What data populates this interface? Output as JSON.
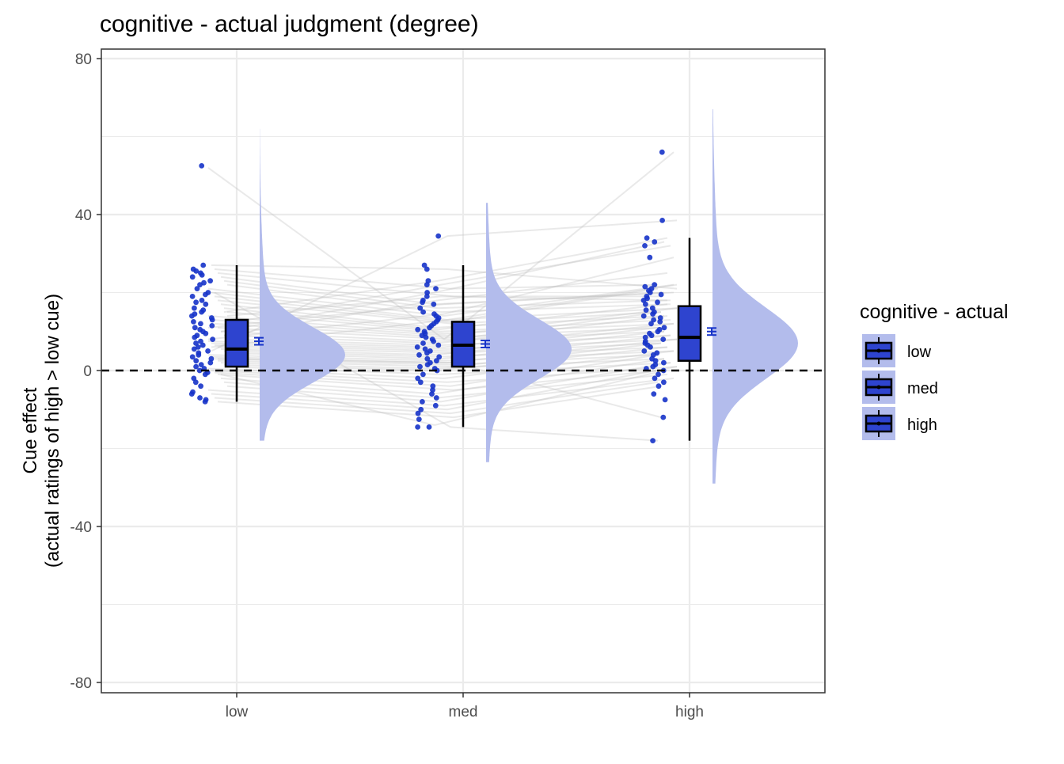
{
  "chart_data": {
    "type": "raincloud",
    "title": "cognitive  - actual judgment (degree)",
    "xlabel": "",
    "ylabel_lines": [
      "Cue effect",
      "(actual ratings of high > low cue)"
    ],
    "categories": [
      "low",
      "med",
      "high"
    ],
    "ylim": [
      -82,
      82
    ],
    "yticks": [
      -80,
      -40,
      0,
      40,
      80
    ],
    "ytick_labels": [
      "-80",
      "-40",
      "0",
      "40",
      "80"
    ],
    "grid": true,
    "reference_line": {
      "y": 0,
      "style": "dashed"
    },
    "colors": {
      "points": "#1633c9",
      "box_fill": "#2e44cf",
      "density_fill": "#b3bcec",
      "lines": "#bfbfbf",
      "grid": "#ebebeb"
    },
    "boxes": [
      {
        "category": "low",
        "q1": 1,
        "median": 5.5,
        "q3": 13,
        "whisker_low": -8,
        "whisker_high": 27,
        "mean": 7.5,
        "se": 0.9
      },
      {
        "category": "med",
        "q1": 1,
        "median": 6.5,
        "q3": 12.5,
        "whisker_low": -14.5,
        "whisker_high": 27,
        "mean": 6.8,
        "se": 0.9
      },
      {
        "category": "high",
        "q1": 2.5,
        "median": 8.5,
        "q3": 16.5,
        "whisker_low": -18,
        "whisker_high": 34,
        "mean": 10,
        "se": 0.9
      }
    ],
    "densities": [
      {
        "category": "low",
        "range": [
          -18,
          62
        ],
        "peak": 4,
        "spread": 7
      },
      {
        "category": "med",
        "range": [
          -23.5,
          43
        ],
        "peak": 5.5,
        "spread": 7.5
      },
      {
        "category": "high",
        "range": [
          -29,
          67
        ],
        "peak": 7,
        "spread": 9
      }
    ],
    "points": {
      "low": [
        52.5,
        27,
        26,
        25.5,
        25,
        24.5,
        24,
        23,
        22.5,
        22,
        21,
        20,
        19.5,
        19,
        18,
        17.5,
        17,
        16,
        15.5,
        15,
        14.5,
        14,
        13.5,
        13,
        12.5,
        12,
        11.5,
        11,
        10.5,
        10,
        9.5,
        9,
        8.5,
        8,
        7.5,
        7,
        6.5,
        6,
        5.5,
        5,
        4.5,
        4,
        3.5,
        3,
        2.5,
        2,
        1.5,
        1,
        0.5,
        0,
        -0.5,
        -1,
        -2,
        -3,
        -4,
        -5.5,
        -6,
        -7,
        -7.5,
        -8
      ],
      "med": [
        34.5,
        27,
        26,
        23,
        22,
        21,
        20,
        19,
        18,
        17.5,
        17,
        16,
        15,
        14.5,
        14,
        13.5,
        13,
        12.5,
        12,
        11.5,
        11,
        10.5,
        10,
        9.5,
        9,
        8.5,
        8,
        7.5,
        7,
        6.5,
        6,
        5.5,
        5,
        4.5,
        4,
        3.5,
        3,
        2.5,
        2,
        1.5,
        1,
        0.5,
        0,
        -1,
        -2,
        -3,
        -4,
        -5,
        -6,
        -7,
        -8,
        -9,
        -10,
        -11,
        -12.5,
        -14.5,
        -14.5
      ],
      "high": [
        56,
        38.5,
        34,
        33,
        32,
        29,
        22,
        21.5,
        21,
        20.5,
        20,
        19.5,
        19,
        18.5,
        18,
        17.5,
        17,
        16,
        15.5,
        15,
        14.5,
        14,
        13.5,
        13,
        12.5,
        12,
        11,
        10.5,
        10,
        9.5,
        9,
        8.5,
        8,
        7.5,
        7,
        6.5,
        6,
        5,
        4.5,
        4,
        3,
        2.5,
        2,
        1.5,
        1,
        0.5,
        0,
        -1,
        -2,
        -3,
        -4,
        -6,
        -7.5,
        -12,
        -18
      ]
    },
    "subject_lines": [
      [
        52,
        8,
        56
      ],
      [
        27,
        26,
        21
      ],
      [
        26,
        21,
        22
      ],
      [
        25,
        19,
        19
      ],
      [
        24,
        17,
        20
      ],
      [
        23,
        16,
        18
      ],
      [
        22,
        15,
        17
      ],
      [
        21,
        14,
        22
      ],
      [
        20,
        13,
        16
      ],
      [
        19,
        12.5,
        21
      ],
      [
        18,
        12,
        15
      ],
      [
        17,
        11,
        14
      ],
      [
        16,
        10.5,
        17
      ],
      [
        15,
        10,
        13
      ],
      [
        14,
        9.5,
        12
      ],
      [
        13,
        9,
        16
      ],
      [
        12,
        8.5,
        11
      ],
      [
        11,
        8,
        15
      ],
      [
        10,
        7.5,
        10
      ],
      [
        9,
        7,
        14
      ],
      [
        8,
        6.5,
        9
      ],
      [
        7.5,
        6,
        12
      ],
      [
        7,
        5.5,
        8
      ],
      [
        6.5,
        5,
        11
      ],
      [
        6,
        4.5,
        7
      ],
      [
        5.5,
        4,
        10
      ],
      [
        5,
        3.5,
        6
      ],
      [
        4.5,
        3,
        9
      ],
      [
        4,
        2.5,
        5
      ],
      [
        3.5,
        2,
        8
      ],
      [
        3,
        1.5,
        4
      ],
      [
        2.5,
        1,
        7
      ],
      [
        2,
        0.5,
        3
      ],
      [
        1.5,
        0,
        6
      ],
      [
        1,
        -1,
        2
      ],
      [
        0.5,
        -2,
        5
      ],
      [
        0,
        -3,
        1
      ],
      [
        -0.5,
        -4,
        4
      ],
      [
        -1,
        -5,
        0
      ],
      [
        -2,
        -6,
        3
      ],
      [
        -3,
        -7,
        -1
      ],
      [
        -4,
        -8,
        2
      ],
      [
        -5,
        -9,
        -2
      ],
      [
        -6,
        -10,
        1
      ],
      [
        -7,
        -11,
        -3
      ],
      [
        -8,
        -12,
        -4
      ],
      [
        10,
        20,
        33
      ],
      [
        15,
        23,
        34
      ],
      [
        12,
        22,
        32
      ],
      [
        8,
        14.5,
        29
      ],
      [
        5,
        34.5,
        38.5
      ],
      [
        20,
        -14.5,
        -18
      ],
      [
        3,
        2,
        -12
      ],
      [
        -1,
        -14,
        0
      ],
      [
        9,
        18,
        25
      ],
      [
        14,
        19,
        18
      ],
      [
        11,
        17,
        20
      ],
      [
        6,
        13,
        22
      ]
    ],
    "legend": {
      "title": "cognitive  - actual",
      "position": "right",
      "entries": [
        "low",
        "med",
        "high"
      ]
    }
  }
}
